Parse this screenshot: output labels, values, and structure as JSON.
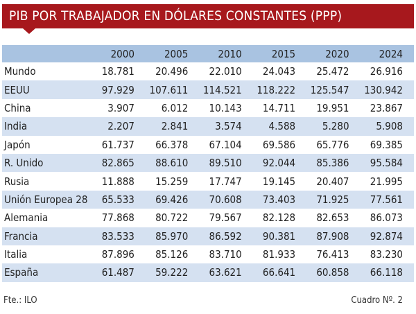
{
  "chart_data": {
    "type": "table",
    "title": "PIB POR TRABAJADOR EN DÓLARES CONSTANTES (PPP)",
    "columns": [
      "2000",
      "2005",
      "2010",
      "2015",
      "2020",
      "2024"
    ],
    "rows": [
      {
        "name": "Mundo",
        "values": [
          "18.781",
          "20.496",
          "22.010",
          "24.043",
          "25.472",
          "26.916"
        ]
      },
      {
        "name": "EEUU",
        "values": [
          "97.929",
          "107.611",
          "114.521",
          "118.222",
          "125.547",
          "130.942"
        ]
      },
      {
        "name": "China",
        "values": [
          "3.907",
          "6.012",
          "10.143",
          "14.711",
          "19.951",
          "23.867"
        ]
      },
      {
        "name": "India",
        "values": [
          "2.207",
          "2.841",
          "3.574",
          "4.588",
          "5.280",
          "5.908"
        ]
      },
      {
        "name": "Japón",
        "values": [
          "61.737",
          "66.378",
          "67.104",
          "69.586",
          "65.776",
          "69.385"
        ]
      },
      {
        "name": "R. Unido",
        "values": [
          "82.865",
          "88.610",
          "89.510",
          "92.044",
          "85.386",
          "95.584"
        ]
      },
      {
        "name": "Rusia",
        "values": [
          "11.888",
          "15.259",
          "17.747",
          "19.145",
          "20.407",
          "21.995"
        ]
      },
      {
        "name": "Unión Europea 28",
        "values": [
          "65.533",
          "69.426",
          "70.608",
          "73.403",
          "71.925",
          "77.561"
        ]
      },
      {
        "name": "Alemania",
        "values": [
          "77.868",
          "80.722",
          "79.567",
          "82.128",
          "82.653",
          "86.073"
        ]
      },
      {
        "name": "Francia",
        "values": [
          "83.533",
          "85.970",
          "86.592",
          "90.381",
          "87.908",
          "92.874"
        ]
      },
      {
        "name": "Italia",
        "values": [
          "87.896",
          "85.126",
          "83.710",
          "81.933",
          "76.413",
          "83.230"
        ]
      },
      {
        "name": "España",
        "values": [
          "61.487",
          "59.222",
          "63.621",
          "66.641",
          "60.858",
          "66.118"
        ]
      }
    ],
    "source": "Fte.: ILO",
    "figure_label": "Cuadro Nº. 2",
    "colors": {
      "banner": "#a7181d",
      "header_row": "#a9c3e1",
      "stripe": "#d5e1f1"
    }
  }
}
